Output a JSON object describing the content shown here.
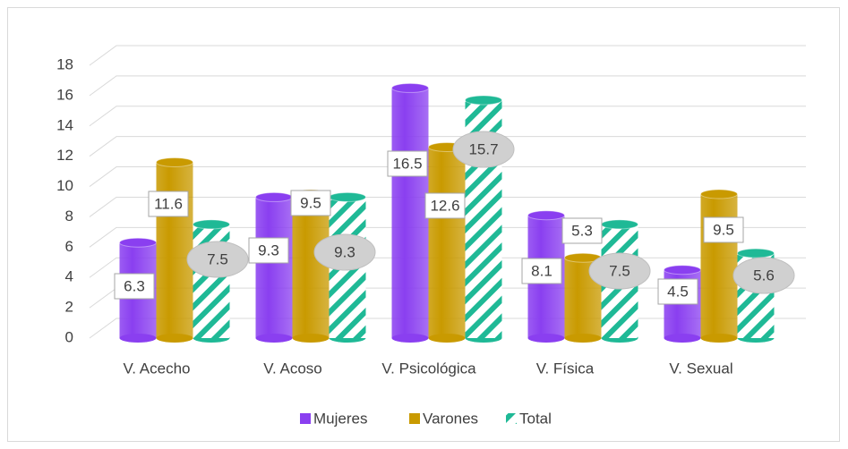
{
  "chart_data": {
    "type": "bar3d",
    "categories": [
      "V. Acecho",
      "V. Acoso",
      "V. Psicológica",
      "V. Física",
      "V. Sexual"
    ],
    "series": [
      {
        "name": "Mujeres",
        "color": "#8a3ff0",
        "values": [
          6.3,
          9.3,
          16.5,
          8.1,
          4.5
        ]
      },
      {
        "name": "Varones",
        "color": "#c99a00",
        "values": [
          11.6,
          9.5,
          12.6,
          5.3,
          9.5
        ]
      },
      {
        "name": "Total",
        "color": "#1fb996",
        "values": [
          7.5,
          9.3,
          15.7,
          7.5,
          5.6
        ]
      }
    ],
    "ylim": [
      0,
      18
    ],
    "yticks": [
      0,
      2,
      4,
      6,
      8,
      10,
      12,
      14,
      16,
      18
    ],
    "grid": true,
    "legend": "bottom"
  }
}
